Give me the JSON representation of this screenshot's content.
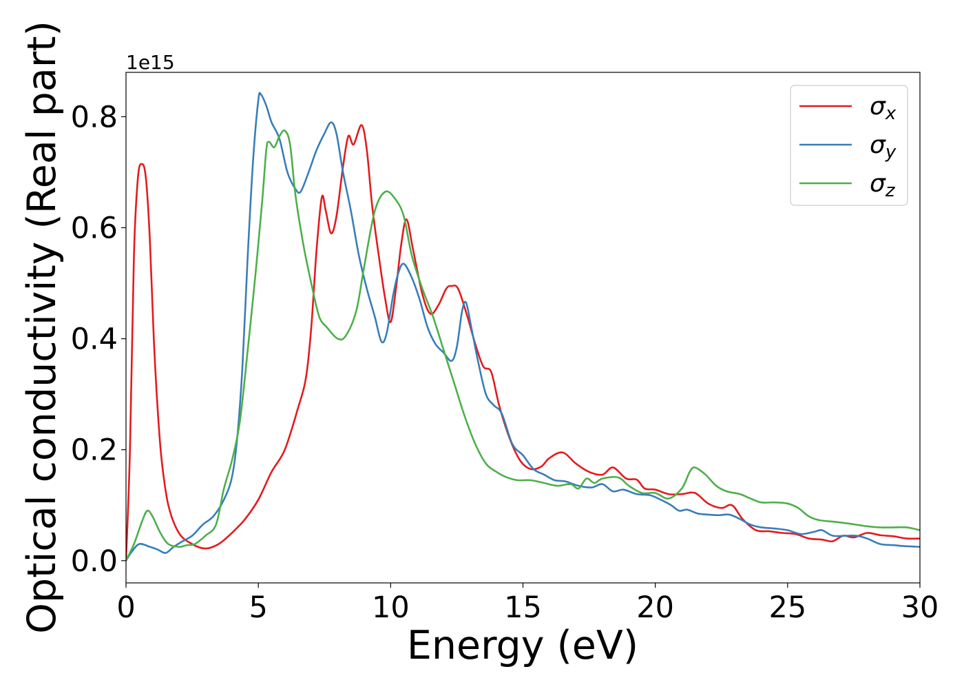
{
  "chart_data": {
    "type": "line",
    "xlabel": "Energy (eV)",
    "ylabel": "Optical conductivity (Real part)",
    "y_offset_text": "1e15",
    "xlim": [
      0,
      30
    ],
    "ylim": [
      -0.04,
      0.88
    ],
    "x_ticks": [
      0,
      5,
      10,
      15,
      20,
      25,
      30
    ],
    "x_tick_labels": [
      "0",
      "5",
      "10",
      "15",
      "20",
      "25",
      "30"
    ],
    "y_ticks": [
      0.0,
      0.2,
      0.4,
      0.6,
      0.8
    ],
    "y_tick_labels": [
      "0.0",
      "0.2",
      "0.4",
      "0.6",
      "0.8"
    ],
    "grid": false,
    "legend_position": "top-right",
    "series": [
      {
        "name": "σx",
        "legend_base": "σ",
        "legend_sub": "x",
        "color": "#e41a1c",
        "points": [
          [
            0,
            0
          ],
          [
            0.15,
            0.2
          ],
          [
            0.3,
            0.55
          ],
          [
            0.45,
            0.69
          ],
          [
            0.6,
            0.715
          ],
          [
            0.75,
            0.69
          ],
          [
            0.9,
            0.58
          ],
          [
            1.05,
            0.4
          ],
          [
            1.2,
            0.27
          ],
          [
            1.35,
            0.18
          ],
          [
            1.6,
            0.1
          ],
          [
            2.0,
            0.05
          ],
          [
            2.5,
            0.03
          ],
          [
            3.0,
            0.022
          ],
          [
            3.5,
            0.03
          ],
          [
            4.0,
            0.05
          ],
          [
            4.5,
            0.075
          ],
          [
            5.0,
            0.11
          ],
          [
            5.5,
            0.16
          ],
          [
            6.0,
            0.2
          ],
          [
            6.5,
            0.275
          ],
          [
            6.8,
            0.33
          ],
          [
            7.0,
            0.42
          ],
          [
            7.2,
            0.56
          ],
          [
            7.4,
            0.655
          ],
          [
            7.55,
            0.63
          ],
          [
            7.75,
            0.59
          ],
          [
            7.95,
            0.62
          ],
          [
            8.2,
            0.71
          ],
          [
            8.4,
            0.765
          ],
          [
            8.6,
            0.75
          ],
          [
            8.9,
            0.785
          ],
          [
            9.1,
            0.74
          ],
          [
            9.3,
            0.64
          ],
          [
            9.55,
            0.55
          ],
          [
            9.8,
            0.47
          ],
          [
            10.0,
            0.43
          ],
          [
            10.2,
            0.49
          ],
          [
            10.4,
            0.57
          ],
          [
            10.6,
            0.615
          ],
          [
            10.85,
            0.56
          ],
          [
            11.2,
            0.48
          ],
          [
            11.5,
            0.445
          ],
          [
            11.8,
            0.46
          ],
          [
            12.1,
            0.49
          ],
          [
            12.3,
            0.495
          ],
          [
            12.55,
            0.49
          ],
          [
            12.9,
            0.44
          ],
          [
            13.2,
            0.39
          ],
          [
            13.5,
            0.35
          ],
          [
            13.8,
            0.34
          ],
          [
            14.1,
            0.28
          ],
          [
            14.5,
            0.22
          ],
          [
            14.9,
            0.18
          ],
          [
            15.3,
            0.165
          ],
          [
            15.7,
            0.17
          ],
          [
            16.0,
            0.185
          ],
          [
            16.5,
            0.195
          ],
          [
            17.0,
            0.175
          ],
          [
            17.5,
            0.16
          ],
          [
            18.0,
            0.155
          ],
          [
            18.4,
            0.168
          ],
          [
            18.9,
            0.148
          ],
          [
            19.3,
            0.146
          ],
          [
            19.6,
            0.13
          ],
          [
            20.0,
            0.128
          ],
          [
            20.5,
            0.12
          ],
          [
            21.0,
            0.12
          ],
          [
            21.5,
            0.122
          ],
          [
            22.0,
            0.103
          ],
          [
            22.5,
            0.095
          ],
          [
            22.9,
            0.1
          ],
          [
            23.3,
            0.075
          ],
          [
            23.8,
            0.055
          ],
          [
            24.3,
            0.053
          ],
          [
            24.8,
            0.05
          ],
          [
            25.3,
            0.048
          ],
          [
            25.8,
            0.04
          ],
          [
            26.3,
            0.038
          ],
          [
            26.7,
            0.035
          ],
          [
            27.1,
            0.045
          ],
          [
            27.5,
            0.042
          ],
          [
            28.0,
            0.05
          ],
          [
            28.5,
            0.046
          ],
          [
            29.0,
            0.044
          ],
          [
            29.5,
            0.04
          ],
          [
            30.0,
            0.04
          ]
        ]
      },
      {
        "name": "σy",
        "legend_base": "σ",
        "legend_sub": "y",
        "color": "#377eb8",
        "points": [
          [
            0,
            0
          ],
          [
            0.2,
            0.015
          ],
          [
            0.5,
            0.03
          ],
          [
            0.9,
            0.025
          ],
          [
            1.2,
            0.02
          ],
          [
            1.5,
            0.014
          ],
          [
            1.8,
            0.025
          ],
          [
            2.1,
            0.034
          ],
          [
            2.5,
            0.045
          ],
          [
            2.9,
            0.065
          ],
          [
            3.3,
            0.08
          ],
          [
            3.7,
            0.11
          ],
          [
            4.0,
            0.15
          ],
          [
            4.2,
            0.22
          ],
          [
            4.4,
            0.35
          ],
          [
            4.6,
            0.55
          ],
          [
            4.8,
            0.72
          ],
          [
            5.0,
            0.83
          ],
          [
            5.1,
            0.84
          ],
          [
            5.3,
            0.82
          ],
          [
            5.5,
            0.79
          ],
          [
            5.8,
            0.76
          ],
          [
            6.1,
            0.7
          ],
          [
            6.4,
            0.67
          ],
          [
            6.6,
            0.665
          ],
          [
            6.9,
            0.7
          ],
          [
            7.2,
            0.74
          ],
          [
            7.5,
            0.77
          ],
          [
            7.75,
            0.79
          ],
          [
            7.95,
            0.77
          ],
          [
            8.2,
            0.7
          ],
          [
            8.5,
            0.63
          ],
          [
            8.8,
            0.55
          ],
          [
            9.1,
            0.49
          ],
          [
            9.4,
            0.44
          ],
          [
            9.65,
            0.395
          ],
          [
            9.85,
            0.41
          ],
          [
            10.1,
            0.48
          ],
          [
            10.3,
            0.52
          ],
          [
            10.5,
            0.535
          ],
          [
            10.8,
            0.51
          ],
          [
            11.1,
            0.47
          ],
          [
            11.4,
            0.42
          ],
          [
            11.7,
            0.39
          ],
          [
            12.0,
            0.375
          ],
          [
            12.3,
            0.36
          ],
          [
            12.5,
            0.385
          ],
          [
            12.7,
            0.45
          ],
          [
            12.85,
            0.465
          ],
          [
            13.05,
            0.42
          ],
          [
            13.3,
            0.36
          ],
          [
            13.6,
            0.3
          ],
          [
            13.9,
            0.28
          ],
          [
            14.2,
            0.265
          ],
          [
            14.6,
            0.21
          ],
          [
            15.0,
            0.19
          ],
          [
            15.4,
            0.165
          ],
          [
            15.8,
            0.155
          ],
          [
            16.2,
            0.145
          ],
          [
            16.6,
            0.143
          ],
          [
            17.1,
            0.135
          ],
          [
            17.6,
            0.132
          ],
          [
            18.0,
            0.138
          ],
          [
            18.4,
            0.125
          ],
          [
            18.8,
            0.128
          ],
          [
            19.3,
            0.12
          ],
          [
            19.8,
            0.118
          ],
          [
            20.2,
            0.11
          ],
          [
            20.6,
            0.1
          ],
          [
            20.9,
            0.09
          ],
          [
            21.2,
            0.092
          ],
          [
            21.6,
            0.085
          ],
          [
            22.0,
            0.083
          ],
          [
            22.4,
            0.082
          ],
          [
            22.8,
            0.083
          ],
          [
            23.2,
            0.075
          ],
          [
            23.6,
            0.065
          ],
          [
            24.0,
            0.06
          ],
          [
            24.5,
            0.058
          ],
          [
            25.0,
            0.055
          ],
          [
            25.5,
            0.048
          ],
          [
            26.0,
            0.052
          ],
          [
            26.3,
            0.055
          ],
          [
            26.7,
            0.045
          ],
          [
            27.2,
            0.045
          ],
          [
            27.6,
            0.045
          ],
          [
            28.0,
            0.04
          ],
          [
            28.5,
            0.03
          ],
          [
            29.0,
            0.028
          ],
          [
            29.5,
            0.026
          ],
          [
            30.0,
            0.025
          ]
        ]
      },
      {
        "name": "σz",
        "legend_base": "σ",
        "legend_sub": "z",
        "color": "#4daf4a",
        "points": [
          [
            0,
            0
          ],
          [
            0.3,
            0.03
          ],
          [
            0.6,
            0.07
          ],
          [
            0.8,
            0.09
          ],
          [
            1.0,
            0.08
          ],
          [
            1.3,
            0.05
          ],
          [
            1.6,
            0.03
          ],
          [
            2.0,
            0.025
          ],
          [
            2.3,
            0.028
          ],
          [
            2.6,
            0.03
          ],
          [
            3.0,
            0.045
          ],
          [
            3.4,
            0.065
          ],
          [
            3.7,
            0.13
          ],
          [
            4.0,
            0.18
          ],
          [
            4.3,
            0.25
          ],
          [
            4.6,
            0.38
          ],
          [
            4.9,
            0.52
          ],
          [
            5.15,
            0.65
          ],
          [
            5.3,
            0.74
          ],
          [
            5.4,
            0.755
          ],
          [
            5.6,
            0.745
          ],
          [
            5.8,
            0.765
          ],
          [
            6.0,
            0.775
          ],
          [
            6.2,
            0.75
          ],
          [
            6.4,
            0.66
          ],
          [
            6.7,
            0.57
          ],
          [
            7.0,
            0.5
          ],
          [
            7.3,
            0.44
          ],
          [
            7.6,
            0.42
          ],
          [
            8.0,
            0.4
          ],
          [
            8.3,
            0.405
          ],
          [
            8.7,
            0.45
          ],
          [
            9.0,
            0.53
          ],
          [
            9.4,
            0.63
          ],
          [
            9.8,
            0.665
          ],
          [
            10.2,
            0.65
          ],
          [
            10.5,
            0.62
          ],
          [
            10.8,
            0.55
          ],
          [
            11.2,
            0.49
          ],
          [
            11.6,
            0.44
          ],
          [
            12.0,
            0.38
          ],
          [
            12.4,
            0.32
          ],
          [
            12.8,
            0.26
          ],
          [
            13.2,
            0.21
          ],
          [
            13.6,
            0.175
          ],
          [
            14.0,
            0.16
          ],
          [
            14.4,
            0.15
          ],
          [
            14.8,
            0.145
          ],
          [
            15.3,
            0.145
          ],
          [
            15.8,
            0.14
          ],
          [
            16.3,
            0.135
          ],
          [
            16.8,
            0.138
          ],
          [
            17.1,
            0.13
          ],
          [
            17.4,
            0.148
          ],
          [
            17.7,
            0.14
          ],
          [
            18.0,
            0.148
          ],
          [
            18.6,
            0.15
          ],
          [
            19.0,
            0.135
          ],
          [
            19.5,
            0.122
          ],
          [
            20.0,
            0.122
          ],
          [
            20.5,
            0.112
          ],
          [
            21.0,
            0.13
          ],
          [
            21.3,
            0.16
          ],
          [
            21.5,
            0.168
          ],
          [
            21.9,
            0.155
          ],
          [
            22.3,
            0.135
          ],
          [
            22.7,
            0.125
          ],
          [
            23.2,
            0.12
          ],
          [
            23.6,
            0.112
          ],
          [
            24.0,
            0.105
          ],
          [
            24.5,
            0.105
          ],
          [
            25.0,
            0.103
          ],
          [
            25.4,
            0.095
          ],
          [
            25.8,
            0.08
          ],
          [
            26.2,
            0.073
          ],
          [
            26.8,
            0.07
          ],
          [
            27.3,
            0.067
          ],
          [
            28.0,
            0.062
          ],
          [
            28.5,
            0.06
          ],
          [
            29.0,
            0.06
          ],
          [
            29.5,
            0.06
          ],
          [
            30.0,
            0.055
          ]
        ]
      }
    ]
  }
}
